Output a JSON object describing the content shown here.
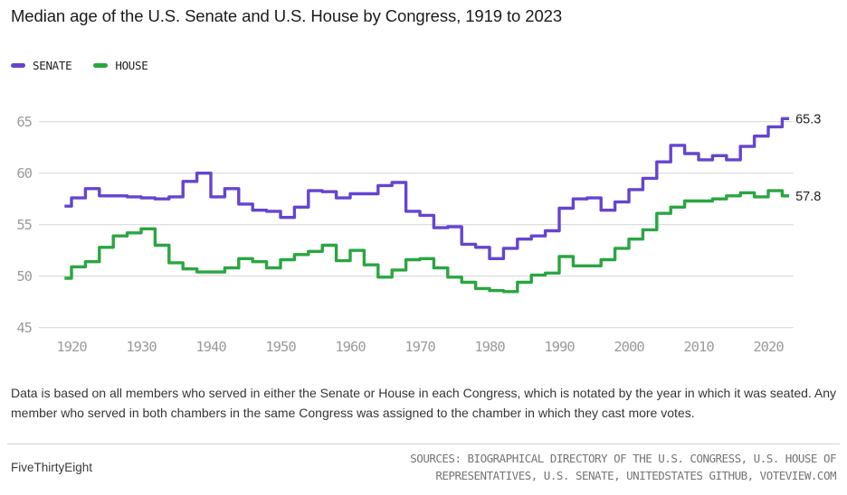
{
  "title": "Median age of the U.S. Senate and U.S. House by Congress, 1919 to 2023",
  "legend": [
    {
      "label": "SENATE",
      "color": "#6544d0"
    },
    {
      "label": "HOUSE",
      "color": "#2aa641"
    }
  ],
  "chart_data": {
    "type": "line",
    "subtype": "step",
    "title": "Median age of the U.S. Senate and U.S. House by Congress, 1919 to 2023",
    "xlabel": "",
    "ylabel": "",
    "xlim": [
      1919,
      2023
    ],
    "ylim": [
      45,
      65
    ],
    "grid": true,
    "legend_position": "top-left",
    "xticks": [
      1920,
      1930,
      1940,
      1950,
      1960,
      1970,
      1980,
      1990,
      2000,
      2010,
      2020
    ],
    "yticks": [
      45,
      50,
      55,
      60,
      65
    ],
    "x": [
      1919,
      1921,
      1923,
      1925,
      1927,
      1929,
      1931,
      1933,
      1935,
      1937,
      1939,
      1941,
      1943,
      1945,
      1947,
      1949,
      1951,
      1953,
      1955,
      1957,
      1959,
      1961,
      1963,
      1965,
      1967,
      1969,
      1971,
      1973,
      1975,
      1977,
      1979,
      1981,
      1983,
      1985,
      1987,
      1989,
      1991,
      1993,
      1995,
      1997,
      1999,
      2001,
      2003,
      2005,
      2007,
      2009,
      2011,
      2013,
      2015,
      2017,
      2019,
      2021,
      2023
    ],
    "series": [
      {
        "name": "SENATE",
        "color": "#6544d0",
        "end_label": "65.3",
        "values": [
          56.8,
          57.6,
          58.5,
          57.8,
          57.8,
          57.7,
          57.6,
          57.5,
          57.7,
          59.2,
          60.0,
          57.7,
          58.5,
          57.0,
          56.4,
          56.3,
          55.7,
          56.7,
          58.3,
          58.2,
          57.6,
          58.0,
          58.0,
          58.8,
          59.1,
          56.3,
          55.9,
          54.7,
          54.8,
          53.1,
          52.8,
          51.7,
          52.7,
          53.6,
          53.9,
          54.4,
          56.6,
          57.5,
          57.6,
          56.4,
          57.2,
          58.4,
          59.5,
          61.1,
          62.7,
          61.9,
          61.3,
          61.7,
          61.3,
          62.6,
          63.6,
          64.5,
          65.3
        ]
      },
      {
        "name": "HOUSE",
        "color": "#2aa641",
        "end_label": "57.8",
        "values": [
          49.8,
          50.9,
          51.4,
          52.8,
          53.9,
          54.2,
          54.6,
          53.0,
          51.3,
          50.7,
          50.4,
          50.4,
          50.8,
          51.7,
          51.4,
          50.8,
          51.6,
          52.1,
          52.4,
          53.0,
          51.5,
          52.5,
          51.1,
          49.9,
          50.6,
          51.6,
          51.7,
          50.8,
          49.9,
          49.4,
          48.8,
          48.6,
          48.5,
          49.4,
          50.1,
          50.3,
          51.9,
          51.0,
          51.0,
          51.6,
          52.7,
          53.6,
          54.5,
          56.1,
          56.7,
          57.3,
          57.3,
          57.5,
          57.8,
          58.1,
          57.7,
          58.3,
          57.8
        ]
      }
    ]
  },
  "footer": {
    "note": "Data is based on all members who served in either the Senate or House in each Congress, which is notated by the year in which it was seated. Any member who served in both chambers in the same Congress was assigned to the chamber in which they cast more votes.",
    "brand": "FiveThirtyEight",
    "sources_line1": "SOURCES: BIOGRAPHICAL DIRECTORY OF THE U.S. CONGRESS, U.S. HOUSE OF",
    "sources_line2": "REPRESENTATIVES, U.S. SENATE, UNITEDSTATES GITHUB, VOTEVIEW.COM"
  },
  "colors": {
    "gridline": "#d9d9d9",
    "tick_label": "#9b9b9b",
    "end_label": "#212121"
  }
}
